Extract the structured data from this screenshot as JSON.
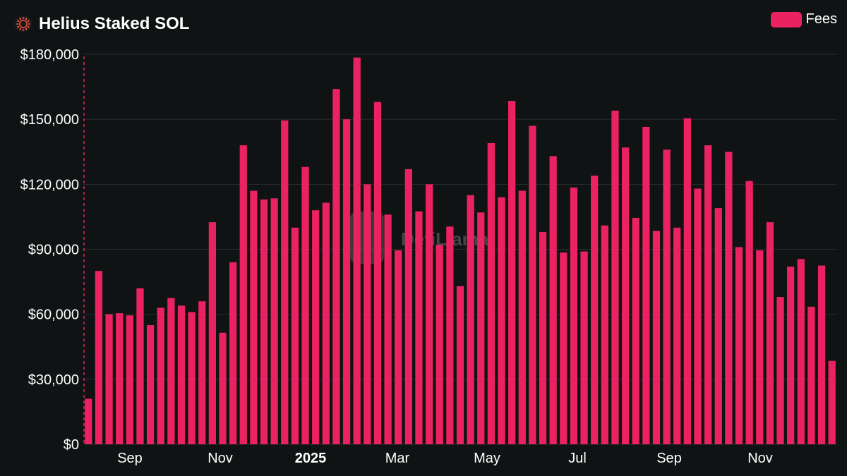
{
  "header": {
    "title": "Helius Staked SOL",
    "logo_icon": "helius-sun-icon"
  },
  "colors": {
    "background": "#0f1314",
    "bar": "#eb2262",
    "grid": "#2a2e30",
    "text": "#ffffff"
  },
  "watermark": "DefiLlama",
  "chart_data": {
    "type": "bar",
    "title": "Helius Staked SOL",
    "legend": {
      "position": "top-right",
      "entries": [
        "Fees"
      ]
    },
    "series": [
      {
        "name": "Fees",
        "values": [
          21000,
          80000,
          60000,
          60500,
          59500,
          72000,
          55000,
          63000,
          67500,
          64000,
          61000,
          66000,
          102500,
          51500,
          84000,
          138000,
          117000,
          113000,
          113500,
          149500,
          100000,
          128000,
          108000,
          111500,
          164000,
          150000,
          178500,
          120000,
          158000,
          106000,
          89500,
          127000,
          107500,
          120000,
          92000,
          100500,
          73000,
          115000,
          107000,
          139000,
          114000,
          158500,
          117000,
          147000,
          98000,
          133000,
          88500,
          118500,
          89000,
          124000,
          101000,
          154000,
          137000,
          104500,
          146500,
          98500,
          136000,
          100000,
          150500,
          118000,
          138000,
          109000,
          135000,
          91000,
          121500,
          89500,
          102500,
          68000,
          82000,
          85500,
          63500,
          82500,
          38500
        ]
      }
    ],
    "x_ticks": [
      {
        "label": "Sep",
        "bold": false
      },
      {
        "label": "Nov",
        "bold": false
      },
      {
        "label": "2025",
        "bold": true
      },
      {
        "label": "Mar",
        "bold": false
      },
      {
        "label": "May",
        "bold": false
      },
      {
        "label": "Jul",
        "bold": false
      },
      {
        "label": "Sep",
        "bold": false
      },
      {
        "label": "Nov",
        "bold": false
      }
    ],
    "y_ticks": [
      "$0",
      "$30,000",
      "$60,000",
      "$90,000",
      "$120,000",
      "$150,000",
      "$180,000"
    ],
    "y_tick_values": [
      0,
      30000,
      60000,
      90000,
      120000,
      150000,
      180000
    ],
    "ylim": [
      0,
      180000
    ],
    "grid": true,
    "xlabel": "",
    "ylabel": ""
  }
}
